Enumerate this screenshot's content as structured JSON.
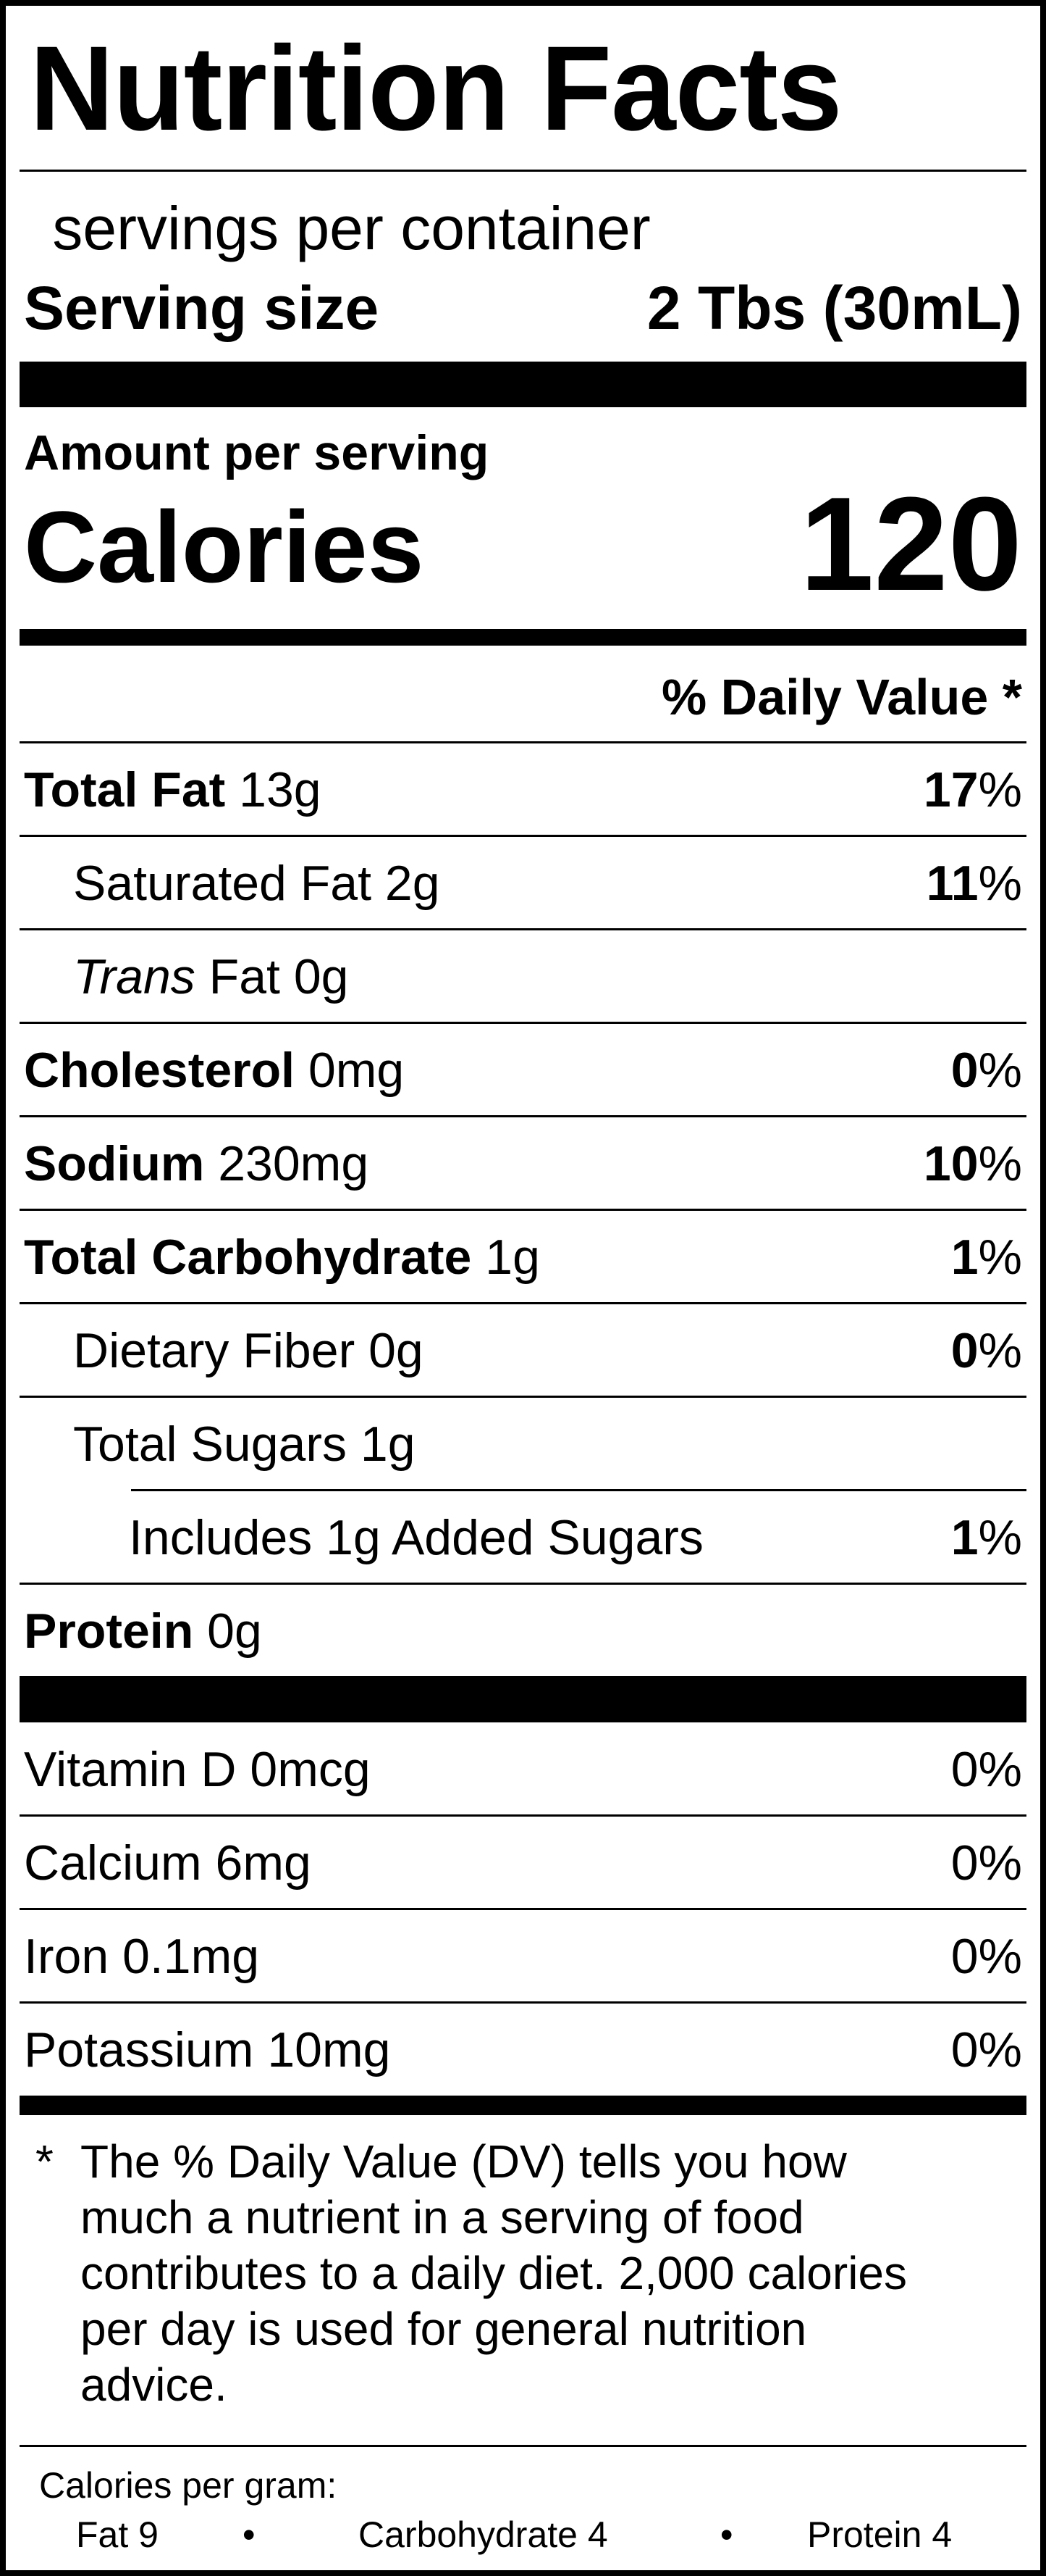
{
  "title": "Nutrition Facts",
  "servings_per_container": " servings per container",
  "serving_size": {
    "label": "Serving size",
    "value": "2 Tbs (30mL)"
  },
  "amount_per_serving": "Amount per serving",
  "calories": {
    "label": "Calories",
    "value": "120"
  },
  "daily_value_header": "% Daily Value *",
  "percent_sign": "%",
  "nutrients": [
    {
      "name_bold": "Total Fat",
      "amount": " 13g",
      "dv": "17"
    },
    {
      "name": "Saturated Fat",
      "amount": " 2g",
      "dv": "11"
    },
    {
      "name_italic": "Trans",
      "amount": " Fat 0g",
      "dv": ""
    },
    {
      "name_bold": "Cholesterol",
      "amount": " 0mg",
      "dv": "0"
    },
    {
      "name_bold": "Sodium",
      "amount": " 230mg",
      "dv": "10"
    },
    {
      "name_bold": "Total Carbohydrate",
      "amount": " 1g",
      "dv": "1"
    },
    {
      "name": "Dietary Fiber",
      "amount": " 0g",
      "dv": "0"
    },
    {
      "name": "Total Sugars",
      "amount": " 1g",
      "dv": ""
    },
    {
      "name": "Includes 1g Added Sugars",
      "amount": "",
      "dv": "1"
    },
    {
      "name_bold": "Protein",
      "amount": " 0g",
      "dv": ""
    }
  ],
  "vitamins": [
    {
      "name": "Vitamin D 0mcg",
      "dv": "0%"
    },
    {
      "name": "Calcium 6mg",
      "dv": "0%"
    },
    {
      "name": "Iron 0.1mg",
      "dv": "0%"
    },
    {
      "name": "Potassium 10mg",
      "dv": "0%"
    }
  ],
  "footnote": {
    "marker": "*",
    "text": "The % Daily Value (DV) tells you how much a nutrient in a serving of food contributes to a daily diet. 2,000 calories per day is used for general nutrition advice."
  },
  "calories_per_gram": {
    "label": "Calories per gram:",
    "items": [
      "Fat 9",
      "Carbohydrate 4",
      "Protein 4"
    ],
    "separator": "•"
  }
}
